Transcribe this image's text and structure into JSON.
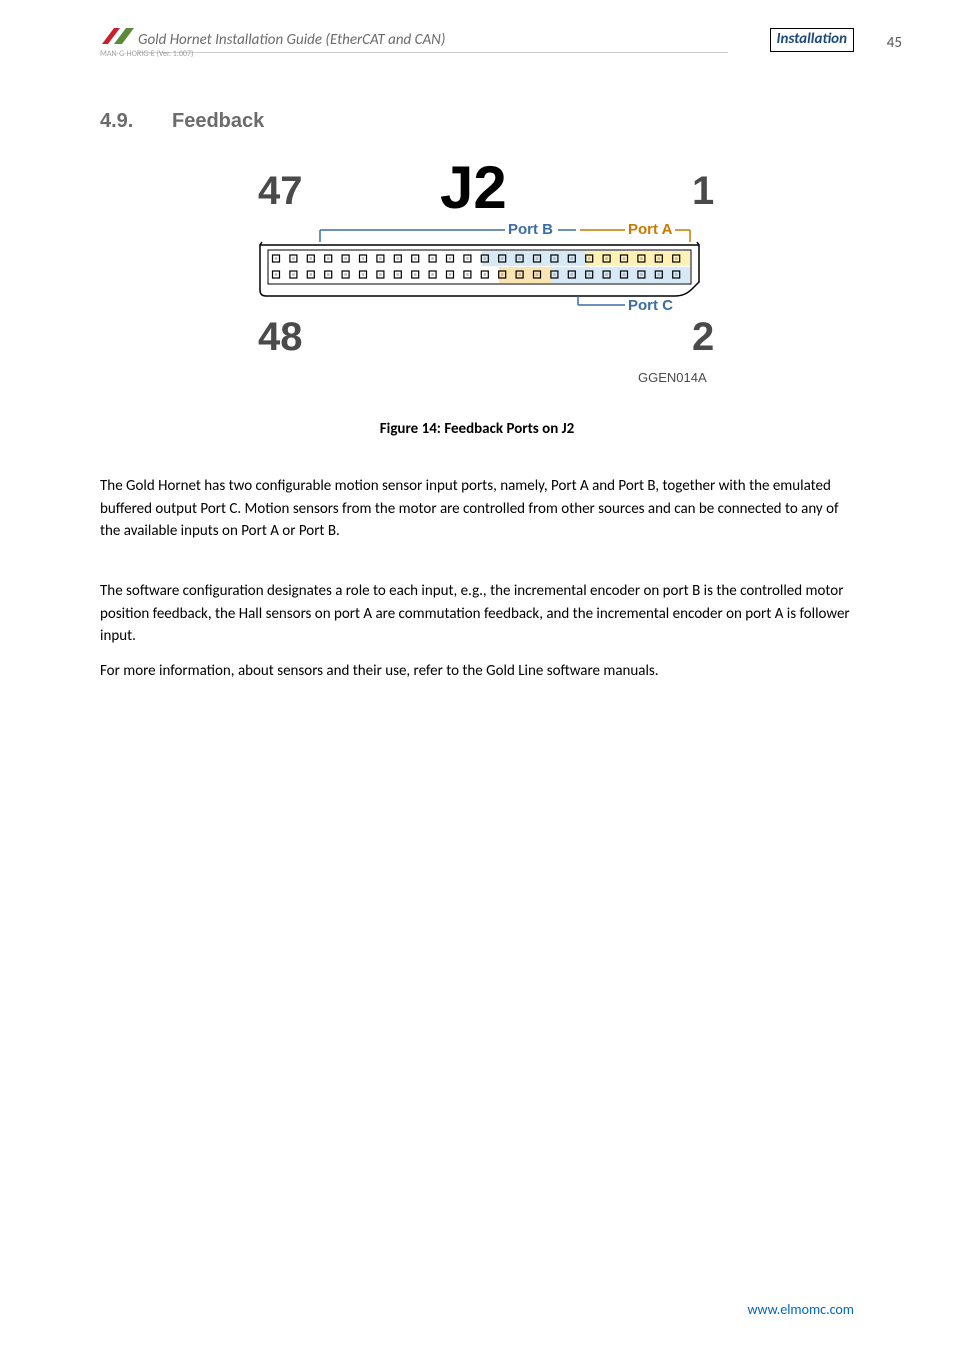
{
  "header": {
    "doc_title": "Gold Hornet Installation Guide (EtherCAT and CAN)",
    "section_label": "Installation",
    "page_number": "45",
    "doc_code": "MAN-G-HORIG-E (Ver. 1.007)"
  },
  "section": {
    "number": "4.9.",
    "title": "Feedback"
  },
  "figure": {
    "j2_label": "J2",
    "tl_num": "47",
    "bl_num": "48",
    "tr_num": "1",
    "br_num": "2",
    "port_a": "Port A",
    "port_b": "Port B",
    "port_c": "Port C",
    "ref": "GGEN014A",
    "caption": "Figure 14: Feedback Ports on J2",
    "colors": {
      "port_a_text": "#c97a00",
      "port_b_text": "#3b6fa3",
      "port_c_text": "#3b6fa3",
      "port_a_fill": "#fff0b3",
      "port_b_fill": "#d6e9f5",
      "port_c_fill": "#f9e4b2",
      "pin_outer": "#000000",
      "pin_inner": "#b5b5b5",
      "box_stroke": "#000000",
      "big_text": "#000000",
      "big_text2": "#4a4a4a"
    },
    "pins_per_row": 24,
    "port_a_top_count": 6,
    "port_a_bot_count": 8,
    "port_b_count": 6,
    "port_c_count": 3
  },
  "paragraphs": {
    "p1": "The Gold Hornet has two configurable motion sensor input ports, namely, Port A and Port B, together with the emulated buffered output Port C. Motion sensors from the motor are controlled from other sources and can be connected to any of the available inputs on Port A or Port B.",
    "p2": "The software configuration designates a role to each input, e.g., the incremental encoder on port B is the controlled motor position feedback, the Hall sensors on port A are commutation feedback, and the incremental encoder on port A is follower input.",
    "p3": "For more information, about sensors and their use, refer to the Gold Line software manuals."
  },
  "footer": {
    "link": "www.elmomc.com"
  }
}
